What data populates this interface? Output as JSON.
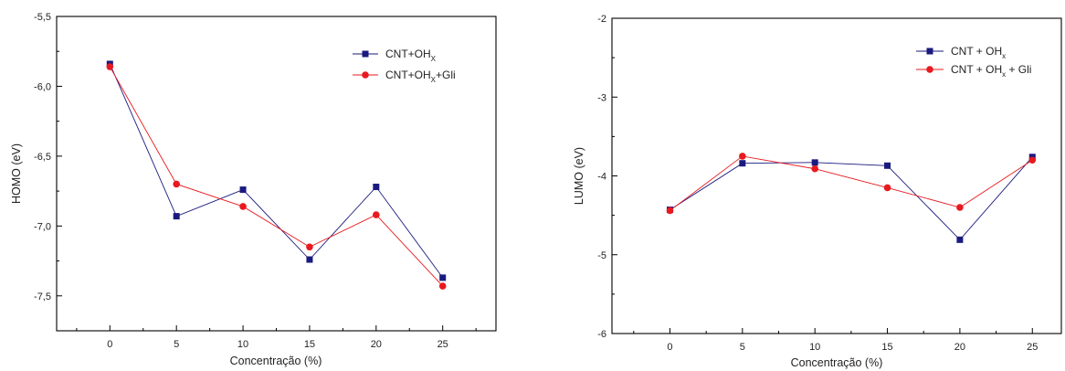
{
  "colors": {
    "series1": "#1a1a7e",
    "series2": "#e8191f",
    "axis": "#000000"
  },
  "chart_data": [
    {
      "type": "line",
      "ylabel": "HOMO (eV)",
      "xlabel": "Concentração (%)",
      "x": [
        0,
        5,
        10,
        15,
        20,
        25
      ],
      "xlim": [
        -4,
        29
      ],
      "ylim": [
        -7.75,
        -5.5
      ],
      "xticks": [
        "0",
        "5",
        "10",
        "15",
        "20",
        "25"
      ],
      "yticks": [
        {
          "v": -5.5,
          "label": "-5,5"
        },
        {
          "v": -6.0,
          "label": "-6,0"
        },
        {
          "v": -6.5,
          "label": "-6,5"
        },
        {
          "v": -7.0,
          "label": "-7,0"
        },
        {
          "v": -7.5,
          "label": "-7,5"
        }
      ],
      "legend_position": "top-right",
      "series": [
        {
          "base": "CNT+OH",
          "sub": "X",
          "tail": "",
          "marker": "square",
          "values": [
            -5.84,
            -6.93,
            -6.74,
            -7.24,
            -6.72,
            -7.37
          ]
        },
        {
          "base": "CNT+OH",
          "sub": "X",
          "tail": "+Gli",
          "marker": "circle",
          "values": [
            -5.86,
            -6.7,
            -6.86,
            -7.15,
            -6.92,
            -7.43
          ]
        }
      ]
    },
    {
      "type": "line",
      "ylabel": "LUMO (eV)",
      "xlabel": "Concentração (%)",
      "x": [
        0,
        5,
        10,
        15,
        20,
        25
      ],
      "xlim": [
        -4,
        27
      ],
      "ylim": [
        -6,
        -2
      ],
      "xticks": [
        "0",
        "5",
        "10",
        "15",
        "20",
        "25"
      ],
      "yticks": [
        {
          "v": -2,
          "label": "-2"
        },
        {
          "v": -3,
          "label": "-3"
        },
        {
          "v": -4,
          "label": "-4"
        },
        {
          "v": -5,
          "label": "-5"
        },
        {
          "v": -6,
          "label": "-6"
        }
      ],
      "legend_position": "top-right",
      "series": [
        {
          "base": "CNT + OH",
          "sub": "x",
          "tail": "",
          "marker": "square",
          "values": [
            -4.43,
            -3.84,
            -3.83,
            -3.87,
            -4.81,
            -3.76
          ]
        },
        {
          "base": "CNT + OH",
          "sub": "x",
          "tail": " + Gli",
          "marker": "circle",
          "values": [
            -4.44,
            -3.75,
            -3.91,
            -4.15,
            -4.4,
            -3.8
          ]
        }
      ]
    }
  ]
}
